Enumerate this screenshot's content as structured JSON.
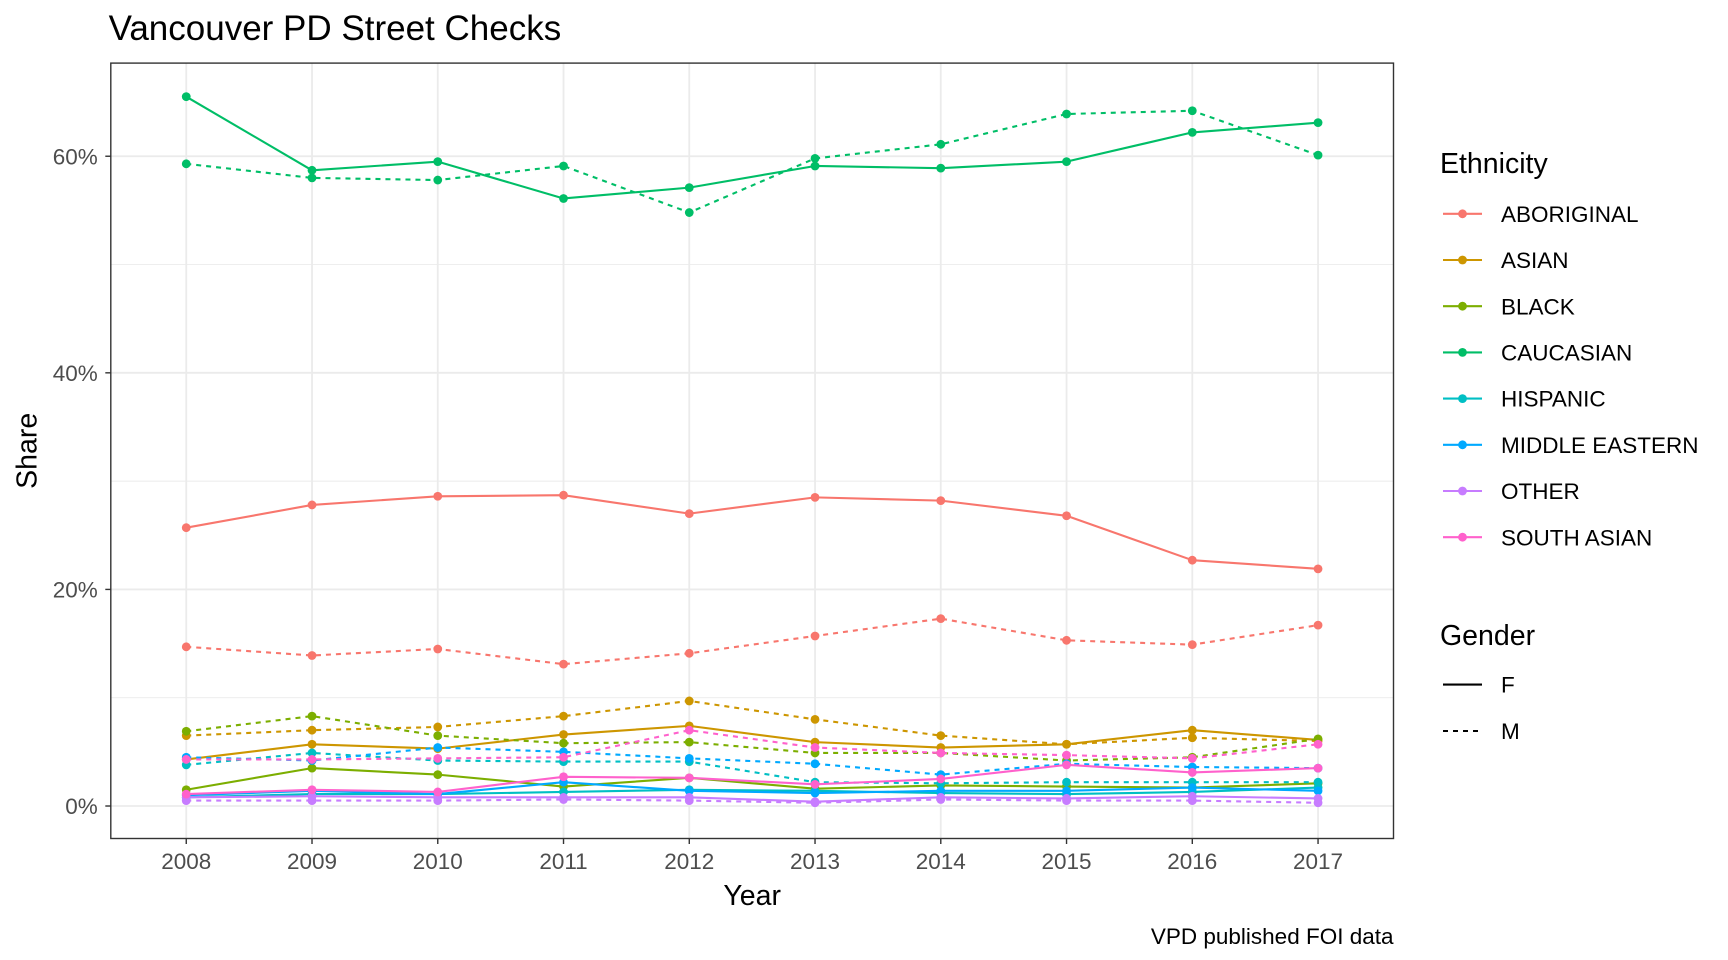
{
  "chart_data": {
    "type": "line",
    "title": "Vancouver PD Street Checks",
    "xlabel": "Year",
    "ylabel": "Share",
    "caption": "VPD published FOI data",
    "categories": [
      "2008",
      "2009",
      "2010",
      "2011",
      "2012",
      "2013",
      "2014",
      "2015",
      "2016",
      "2017"
    ],
    "y_ticks": [
      0,
      20,
      40,
      60
    ],
    "y_tick_labels": [
      "0%",
      "20%",
      "40%",
      "60%"
    ],
    "ylim": [
      -3,
      68.6
    ],
    "grid": true,
    "legend_position": "right",
    "color_legend_title": "Ethnicity",
    "linetype_legend": {
      "title": "Gender",
      "entries": [
        {
          "label": "F",
          "dashed": false
        },
        {
          "label": "M",
          "dashed": true
        }
      ]
    },
    "series": [
      {
        "name": "ABORIGINAL",
        "color": "#F8766D",
        "values": {
          "F": [
            25.7,
            27.8,
            28.6,
            28.7,
            27.0,
            28.5,
            28.2,
            26.8,
            22.7,
            21.9
          ],
          "M": [
            14.7,
            13.9,
            14.5,
            13.1,
            14.1,
            15.7,
            17.3,
            15.3,
            14.9,
            16.7
          ]
        }
      },
      {
        "name": "ASIAN",
        "color": "#CD9600",
        "values": {
          "F": [
            4.3,
            5.7,
            5.3,
            6.6,
            7.4,
            5.9,
            5.4,
            5.7,
            7.0,
            6.1
          ],
          "M": [
            6.5,
            7.0,
            7.3,
            8.3,
            9.7,
            8.0,
            6.5,
            5.7,
            6.3,
            6.0
          ]
        }
      },
      {
        "name": "BLACK",
        "color": "#7CAE00",
        "values": {
          "F": [
            1.5,
            3.5,
            2.9,
            1.8,
            2.6,
            1.6,
            1.9,
            1.8,
            1.7,
            2.1
          ],
          "M": [
            6.9,
            8.3,
            6.5,
            5.8,
            5.9,
            4.9,
            4.9,
            4.2,
            4.5,
            6.2
          ]
        }
      },
      {
        "name": "CAUCASIAN",
        "color": "#00BE67",
        "values": {
          "F": [
            65.5,
            58.7,
            59.5,
            56.1,
            57.1,
            59.1,
            58.9,
            59.5,
            62.2,
            63.1
          ],
          "M": [
            59.3,
            58.0,
            57.8,
            59.1,
            54.8,
            59.8,
            61.1,
            63.9,
            64.2,
            60.1
          ]
        }
      },
      {
        "name": "HISPANIC",
        "color": "#00BFC4",
        "values": {
          "F": [
            0.8,
            1.1,
            1.1,
            1.3,
            1.5,
            1.4,
            1.2,
            1.1,
            1.3,
            1.7
          ],
          "M": [
            3.8,
            4.9,
            4.2,
            4.1,
            4.1,
            2.2,
            2.1,
            2.2,
            2.2,
            2.2
          ]
        }
      },
      {
        "name": "MIDDLE EASTERN",
        "color": "#00A9FF",
        "values": {
          "F": [
            1.0,
            1.4,
            1.1,
            2.2,
            1.4,
            1.2,
            1.4,
            1.4,
            1.7,
            1.4
          ],
          "M": [
            4.5,
            4.2,
            5.4,
            5.0,
            4.4,
            3.9,
            2.9,
            3.9,
            3.6,
            3.5
          ]
        }
      },
      {
        "name": "OTHER",
        "color": "#C77CFF",
        "values": {
          "F": [
            0.8,
            0.9,
            0.8,
            0.8,
            0.8,
            0.4,
            0.8,
            0.7,
            0.9,
            0.7
          ],
          "M": [
            0.5,
            0.5,
            0.5,
            0.6,
            0.5,
            0.3,
            0.6,
            0.5,
            0.5,
            0.3
          ]
        }
      },
      {
        "name": "SOUTH ASIAN",
        "color": "#FF61CC",
        "values": {
          "F": [
            1.1,
            1.5,
            1.3,
            2.7,
            2.6,
            2.0,
            2.5,
            3.8,
            3.1,
            3.5
          ],
          "M": [
            4.3,
            4.3,
            4.4,
            4.5,
            7.0,
            5.4,
            4.9,
            4.7,
            4.4,
            5.7
          ]
        }
      }
    ]
  }
}
